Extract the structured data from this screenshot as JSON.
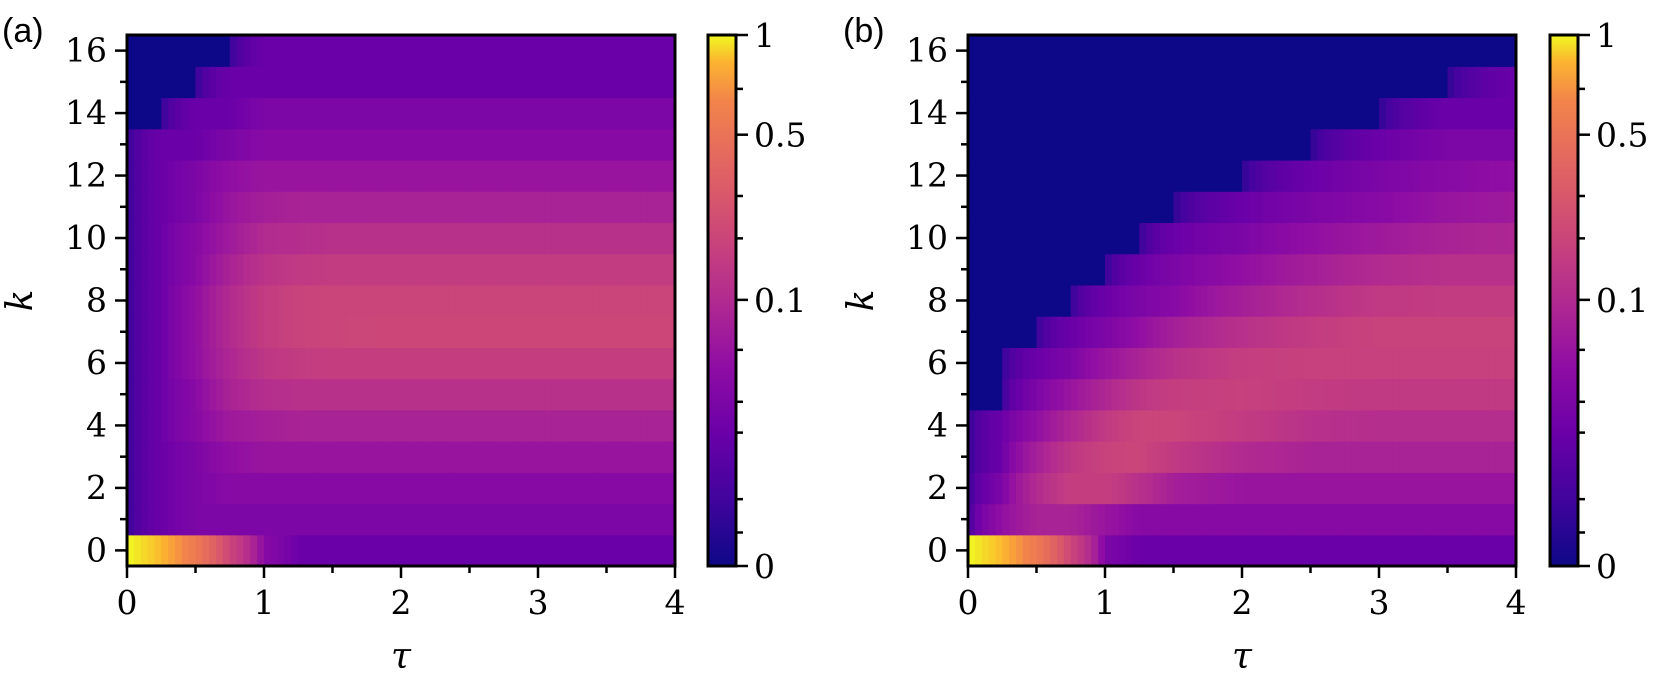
{
  "chart_data": [
    {
      "type": "heatmap",
      "panel_label": "(a)",
      "xlabel": "τ",
      "ylabel": "k",
      "xlim": [
        0,
        4
      ],
      "ylim": [
        -0.5,
        16.5
      ],
      "x_ticks": [
        "0",
        "1",
        "2",
        "3",
        "4"
      ],
      "y_ticks": [
        "0",
        "2",
        "4",
        "6",
        "8",
        "10",
        "12",
        "14",
        "16"
      ],
      "colorbar": {
        "ticks": [
          "0",
          "0.1",
          "0.5",
          "1"
        ],
        "scale": "power-law",
        "colormap": "plasma"
      },
      "tau": [
        0,
        0.25,
        0.5,
        0.75,
        1.0,
        1.25,
        1.5,
        2.0,
        2.5,
        3.0,
        3.5,
        4.0
      ],
      "k": [
        0,
        1,
        2,
        3,
        4,
        5,
        6,
        7,
        8,
        9,
        10,
        11,
        12,
        13,
        14,
        15,
        16
      ],
      "values": [
        [
          1.0,
          0.85,
          0.55,
          0.2,
          0.03,
          0.01,
          0.01,
          0.01,
          0.01,
          0.01,
          0.01,
          0.01
        ],
        [
          0.0,
          0.01,
          0.02,
          0.02,
          0.02,
          0.02,
          0.02,
          0.02,
          0.02,
          0.02,
          0.02,
          0.02
        ],
        [
          0.0,
          0.01,
          0.02,
          0.03,
          0.03,
          0.03,
          0.03,
          0.03,
          0.03,
          0.03,
          0.03,
          0.03
        ],
        [
          0.0,
          0.01,
          0.02,
          0.04,
          0.05,
          0.05,
          0.05,
          0.05,
          0.05,
          0.05,
          0.05,
          0.05
        ],
        [
          0.0,
          0.01,
          0.03,
          0.06,
          0.07,
          0.08,
          0.08,
          0.08,
          0.08,
          0.08,
          0.08,
          0.08
        ],
        [
          0.0,
          0.01,
          0.03,
          0.08,
          0.11,
          0.12,
          0.12,
          0.12,
          0.12,
          0.12,
          0.12,
          0.12
        ],
        [
          0.0,
          0.01,
          0.04,
          0.09,
          0.14,
          0.16,
          0.17,
          0.17,
          0.17,
          0.17,
          0.17,
          0.17
        ],
        [
          0.0,
          0.01,
          0.04,
          0.1,
          0.16,
          0.19,
          0.2,
          0.21,
          0.21,
          0.21,
          0.21,
          0.21
        ],
        [
          0.0,
          0.01,
          0.04,
          0.1,
          0.16,
          0.19,
          0.2,
          0.2,
          0.2,
          0.2,
          0.2,
          0.2
        ],
        [
          0.0,
          0.01,
          0.03,
          0.08,
          0.13,
          0.15,
          0.16,
          0.16,
          0.16,
          0.16,
          0.16,
          0.16
        ],
        [
          0.0,
          0.01,
          0.03,
          0.06,
          0.1,
          0.11,
          0.12,
          0.12,
          0.12,
          0.12,
          0.12,
          0.12
        ],
        [
          0.0,
          0.01,
          0.02,
          0.05,
          0.07,
          0.08,
          0.08,
          0.08,
          0.08,
          0.08,
          0.08,
          0.08
        ],
        [
          0.0,
          0.01,
          0.02,
          0.04,
          0.05,
          0.05,
          0.05,
          0.05,
          0.05,
          0.05,
          0.05,
          0.05
        ],
        [
          0.0,
          0.01,
          0.01,
          0.02,
          0.03,
          0.03,
          0.03,
          0.03,
          0.03,
          0.03,
          0.03,
          0.03
        ],
        [
          0.0,
          0.0,
          0.01,
          0.01,
          0.02,
          0.02,
          0.02,
          0.02,
          0.02,
          0.02,
          0.02,
          0.02
        ],
        [
          0.0,
          0.0,
          0.0,
          0.01,
          0.01,
          0.01,
          0.01,
          0.01,
          0.01,
          0.01,
          0.01,
          0.01
        ],
        [
          0.0,
          0.0,
          0.0,
          0.0,
          0.01,
          0.01,
          0.01,
          0.01,
          0.01,
          0.01,
          0.01,
          0.01
        ]
      ]
    },
    {
      "type": "heatmap",
      "panel_label": "(b)",
      "xlabel": "τ",
      "ylabel": "k",
      "xlim": [
        0,
        4
      ],
      "ylim": [
        -0.5,
        16.5
      ],
      "x_ticks": [
        "0",
        "1",
        "2",
        "3",
        "4"
      ],
      "y_ticks": [
        "0",
        "2",
        "4",
        "6",
        "8",
        "10",
        "12",
        "14",
        "16"
      ],
      "colorbar": {
        "ticks": [
          "0",
          "0.1",
          "0.5",
          "1"
        ],
        "scale": "power-law",
        "colormap": "plasma"
      },
      "tau": [
        0,
        0.25,
        0.5,
        0.75,
        1.0,
        1.25,
        1.5,
        2.0,
        2.5,
        3.0,
        3.5,
        4.0
      ],
      "k": [
        0,
        1,
        2,
        3,
        4,
        5,
        6,
        7,
        8,
        9,
        10,
        11,
        12,
        13,
        14,
        15,
        16
      ],
      "values": [
        [
          1.0,
          0.85,
          0.55,
          0.2,
          0.02,
          0.01,
          0.01,
          0.01,
          0.01,
          0.01,
          0.01,
          0.01
        ],
        [
          0.0,
          0.04,
          0.08,
          0.08,
          0.05,
          0.03,
          0.03,
          0.03,
          0.03,
          0.03,
          0.03,
          0.03
        ],
        [
          0.0,
          0.02,
          0.1,
          0.17,
          0.17,
          0.12,
          0.07,
          0.05,
          0.05,
          0.05,
          0.05,
          0.05
        ],
        [
          0.0,
          0.01,
          0.07,
          0.14,
          0.19,
          0.2,
          0.15,
          0.1,
          0.08,
          0.08,
          0.08,
          0.08
        ],
        [
          0.0,
          0.01,
          0.04,
          0.09,
          0.15,
          0.2,
          0.2,
          0.16,
          0.12,
          0.11,
          0.11,
          0.11
        ],
        [
          0.0,
          0.0,
          0.02,
          0.05,
          0.09,
          0.14,
          0.17,
          0.18,
          0.16,
          0.15,
          0.15,
          0.15
        ],
        [
          0.0,
          0.0,
          0.01,
          0.02,
          0.05,
          0.08,
          0.12,
          0.17,
          0.18,
          0.18,
          0.18,
          0.18
        ],
        [
          0.0,
          0.0,
          0.0,
          0.01,
          0.02,
          0.04,
          0.07,
          0.12,
          0.16,
          0.19,
          0.19,
          0.19
        ],
        [
          0.0,
          0.0,
          0.0,
          0.0,
          0.01,
          0.02,
          0.03,
          0.07,
          0.11,
          0.15,
          0.16,
          0.16
        ],
        [
          0.0,
          0.0,
          0.0,
          0.0,
          0.0,
          0.01,
          0.02,
          0.04,
          0.07,
          0.1,
          0.12,
          0.12
        ],
        [
          0.0,
          0.0,
          0.0,
          0.0,
          0.0,
          0.0,
          0.01,
          0.02,
          0.04,
          0.06,
          0.08,
          0.09
        ],
        [
          0.0,
          0.0,
          0.0,
          0.0,
          0.0,
          0.0,
          0.0,
          0.01,
          0.02,
          0.03,
          0.05,
          0.06
        ],
        [
          0.0,
          0.0,
          0.0,
          0.0,
          0.0,
          0.0,
          0.0,
          0.0,
          0.01,
          0.02,
          0.03,
          0.04
        ],
        [
          0.0,
          0.0,
          0.0,
          0.0,
          0.0,
          0.0,
          0.0,
          0.0,
          0.0,
          0.01,
          0.02,
          0.02
        ],
        [
          0.0,
          0.0,
          0.0,
          0.0,
          0.0,
          0.0,
          0.0,
          0.0,
          0.0,
          0.0,
          0.01,
          0.01
        ],
        [
          0.0,
          0.0,
          0.0,
          0.0,
          0.0,
          0.0,
          0.0,
          0.0,
          0.0,
          0.0,
          0.0,
          0.01
        ],
        [
          0.0,
          0.0,
          0.0,
          0.0,
          0.0,
          0.0,
          0.0,
          0.0,
          0.0,
          0.0,
          0.0,
          0.0
        ]
      ]
    }
  ]
}
